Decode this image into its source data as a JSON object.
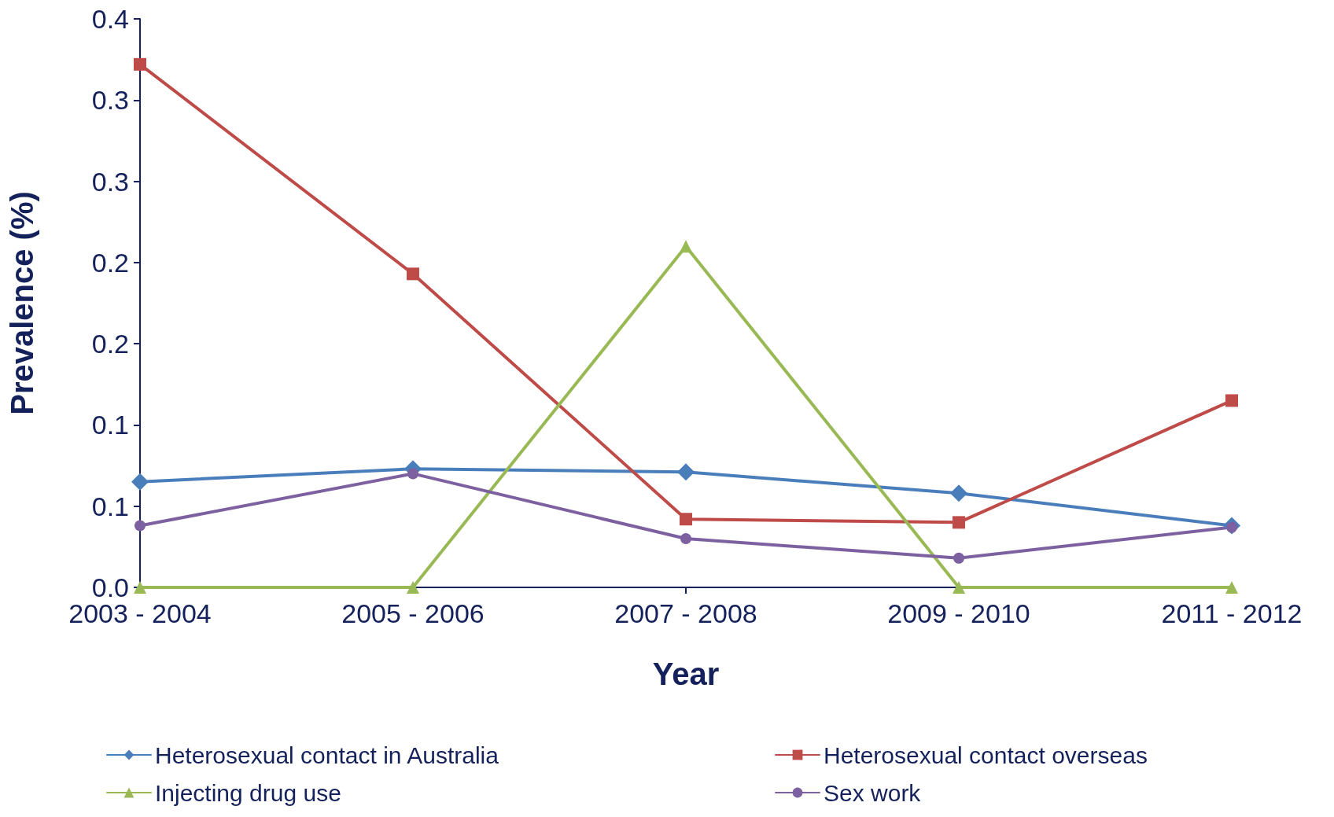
{
  "chart_data": {
    "type": "line",
    "xlabel": "Year",
    "ylabel": "Prevalence (%)",
    "categories": [
      "2003 - 2004",
      "2005 - 2006",
      "2007 - 2008",
      "2009 - 2010",
      "2011 - 2012"
    ],
    "ylim": [
      0,
      0.35
    ],
    "yticks": [
      {
        "value": 0,
        "label": "0.0"
      },
      {
        "value": 0.05,
        "label": "0.1"
      },
      {
        "value": 0.1,
        "label": "0.1"
      },
      {
        "value": 0.15,
        "label": "0.2"
      },
      {
        "value": 0.2,
        "label": "0.2"
      },
      {
        "value": 0.25,
        "label": "0.3"
      },
      {
        "value": 0.3,
        "label": "0.3"
      },
      {
        "value": 0.35,
        "label": "0.4"
      }
    ],
    "grid": false,
    "legend": "bottom",
    "line_style": "solid",
    "series": [
      {
        "name": "Heterosexual contact in Australia",
        "color": "#4a7ebb",
        "marker": "diamond",
        "values": [
          0.065,
          0.073,
          0.071,
          0.058,
          0.038
        ]
      },
      {
        "name": "Heterosexual contact overseas",
        "color": "#be4b48",
        "marker": "square",
        "values": [
          0.322,
          0.193,
          0.042,
          0.04,
          0.115
        ]
      },
      {
        "name": "Injecting drug use",
        "color": "#98b954",
        "marker": "triangle",
        "values": [
          0,
          0,
          0.21,
          0,
          0
        ]
      },
      {
        "name": "Sex work",
        "color": "#7d60a0",
        "marker": "circle",
        "values": [
          0.038,
          0.07,
          0.03,
          0.018,
          0.037
        ]
      }
    ]
  }
}
